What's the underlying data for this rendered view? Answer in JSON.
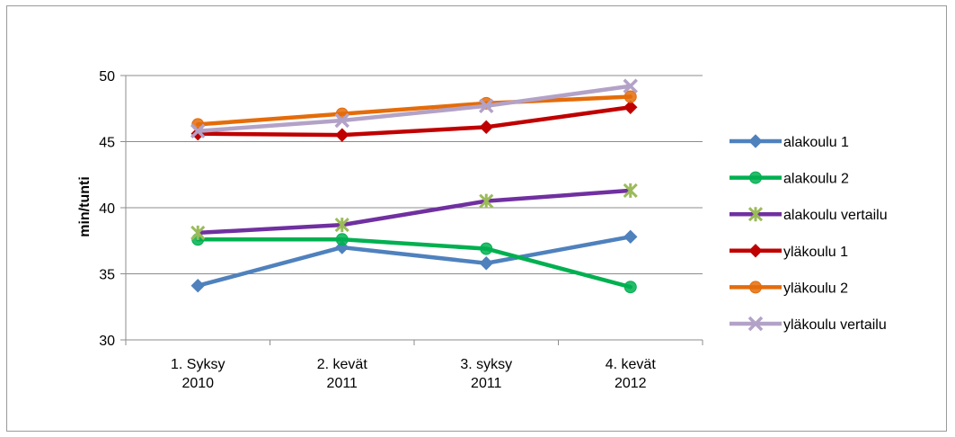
{
  "chart_data": {
    "type": "line",
    "ylabel": "min/tunti",
    "xlabel": "",
    "ylim": [
      30,
      50
    ],
    "yticks": [
      30,
      35,
      40,
      45,
      50
    ],
    "categories": [
      [
        "1. Syksy",
        "2010"
      ],
      [
        "2. kevät",
        "2011"
      ],
      [
        "3. syksy",
        "2011"
      ],
      [
        "4. kevät",
        "2012"
      ]
    ],
    "grid": true,
    "legend_position": "right",
    "series": [
      {
        "name": "alakoulu 1",
        "values": [
          34.1,
          37.0,
          35.8,
          37.8
        ],
        "color": "#4f81bd",
        "marker": "diamond"
      },
      {
        "name": "alakoulu 2",
        "values": [
          37.6,
          37.6,
          36.9,
          34.0
        ],
        "color": "#00b050",
        "marker": "circle"
      },
      {
        "name": "alakoulu vertailu",
        "values": [
          38.1,
          38.7,
          40.5,
          41.3
        ],
        "color": "#7030a0",
        "marker": "star"
      },
      {
        "name": "yläkoulu 1",
        "values": [
          45.6,
          45.5,
          46.1,
          47.6
        ],
        "color": "#c00000",
        "marker": "diamond"
      },
      {
        "name": "yläkoulu 2",
        "values": [
          46.3,
          47.1,
          47.9,
          48.4
        ],
        "color": "#e46c0a",
        "marker": "circle"
      },
      {
        "name": "yläkoulu vertailu",
        "values": [
          45.8,
          46.6,
          47.7,
          49.2
        ],
        "color": "#b3a2c7",
        "marker": "cross"
      }
    ]
  }
}
